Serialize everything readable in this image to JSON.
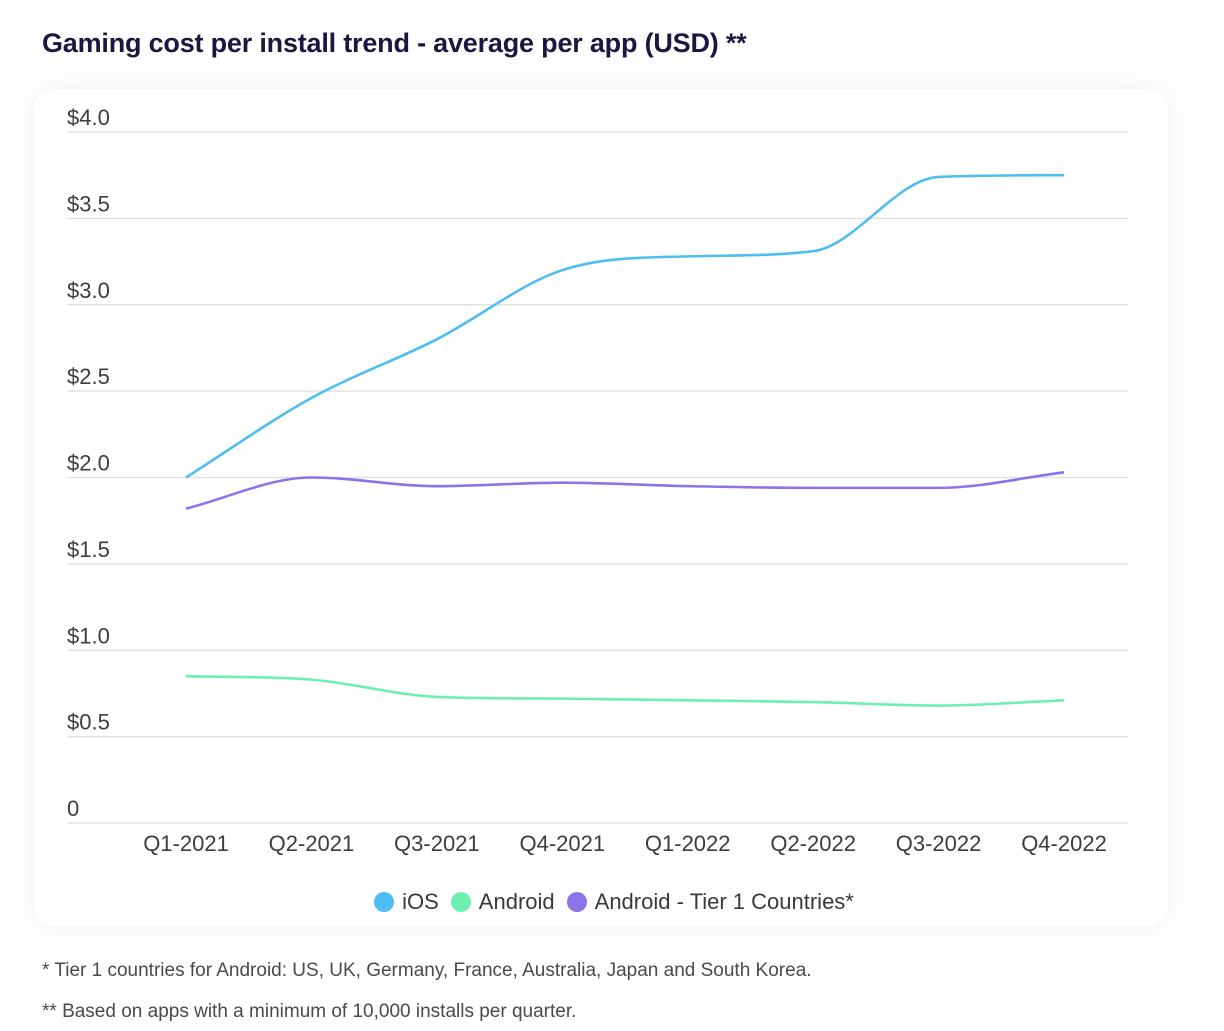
{
  "page": {
    "footnotes": [
      "* Tier 1 countries for Android: US, UK, Germany, France, Australia, Japan and South Korea.",
      "** Based on apps with a minimum of 10,000 installs per quarter."
    ]
  },
  "chart_data": {
    "type": "line",
    "title": "Gaming cost per install trend - average per app (USD) **",
    "xlabel": "",
    "ylabel": "",
    "categories": [
      "Q1-2021",
      "Q2-2021",
      "Q3-2021",
      "Q4-2021",
      "Q1-2022",
      "Q2-2022",
      "Q3-2022",
      "Q4-2022"
    ],
    "ylim": [
      0,
      4.0
    ],
    "yticks": [
      0,
      0.5,
      1.0,
      1.5,
      2.0,
      2.5,
      3.0,
      3.5,
      4.0
    ],
    "ytick_labels": [
      "0",
      "$0.5",
      "$1.0",
      "$1.5",
      "$2.0",
      "$2.5",
      "$3.0",
      "$3.5",
      "$4.0"
    ],
    "grid": "horizontal",
    "legend_position": "bottom-center",
    "series": [
      {
        "name": "iOS",
        "color": "#4dbdf2",
        "values": [
          2.0,
          2.46,
          2.8,
          3.2,
          3.28,
          3.31,
          3.74,
          3.75
        ]
      },
      {
        "name": "Android",
        "color": "#6eefb0",
        "values": [
          0.85,
          0.83,
          0.73,
          0.72,
          0.71,
          0.7,
          0.68,
          0.71
        ]
      },
      {
        "name": "Android - Tier 1 Countries*",
        "color": "#8e72e8",
        "values": [
          1.82,
          2.0,
          1.95,
          1.97,
          1.95,
          1.94,
          1.94,
          2.03
        ]
      }
    ]
  }
}
